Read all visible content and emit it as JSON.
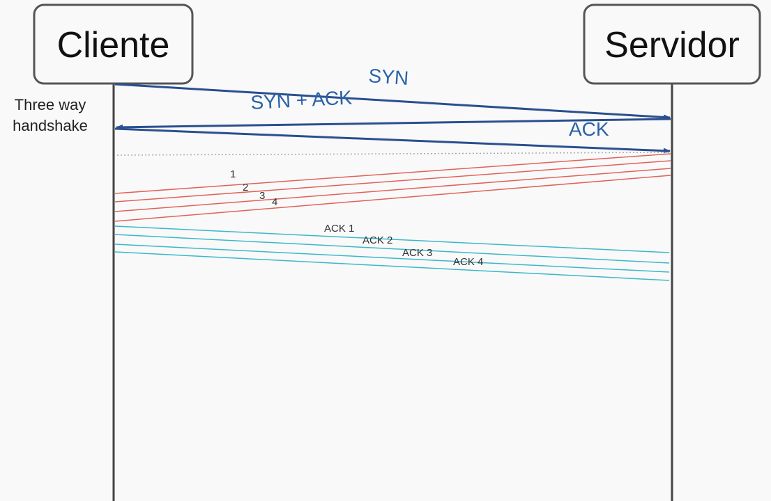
{
  "participants": {
    "client": "Cliente",
    "server": "Servidor"
  },
  "side_label": {
    "line1": "Three way",
    "line2": "handshake"
  },
  "handshake": {
    "syn": "SYN",
    "syn_ack": "SYN + ACK",
    "ack": "ACK"
  },
  "segments": [
    "1",
    "2",
    "3",
    "4"
  ],
  "acks": [
    "ACK 1",
    "ACK 2",
    "ACK 3",
    "ACK 4"
  ],
  "colors": {
    "handshake": "#2a4f8f",
    "handshake_text": "#2a62a8",
    "segment": "#e0625a",
    "ack": "#3bb8c8",
    "separator": "#aaaaaa",
    "lifeline": "#444444"
  }
}
